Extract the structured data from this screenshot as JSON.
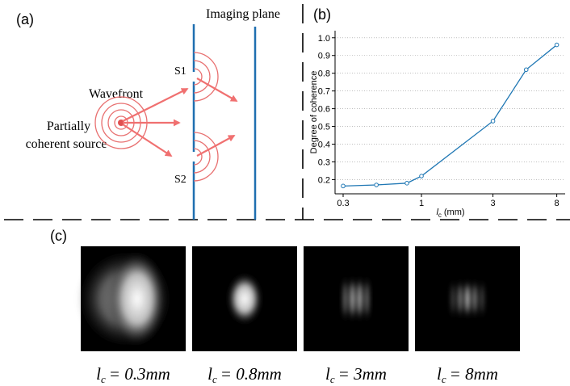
{
  "panel_a": {
    "label": "(a)",
    "imaging_plane": "Imaging plane",
    "wavefront": "Wavefront",
    "source": [
      "Partially",
      "coherent source"
    ],
    "slits": [
      "S1",
      "S2"
    ]
  },
  "panel_b": {
    "label": "(b)"
  },
  "chart_data": {
    "type": "line",
    "y_label": "Degree of coherence",
    "x_label": {
      "symbol": "l",
      "subscript": "c",
      "text": "(mm)"
    },
    "x": [
      0.3,
      0.5,
      0.8,
      1,
      3,
      5,
      8
    ],
    "series": [
      {
        "color": "#1f77b4",
        "values": [
          0.164,
          0.17,
          0.18,
          0.22,
          0.53,
          0.82,
          0.96
        ]
      }
    ],
    "xscale": "log",
    "xlim": [
      0.265,
      9.1
    ],
    "xticks": [
      0.3,
      1,
      3,
      8
    ],
    "ylim": [
      0.12,
      1.04
    ],
    "yticks": [
      0.2,
      0.3,
      0.4,
      0.5,
      0.6,
      0.7,
      0.8,
      0.9,
      {
        "value": 1,
        "label": "1.0"
      }
    ],
    "grid": true
  },
  "panel_c": {
    "label": "(c)",
    "images": [
      {
        "symbol": "l",
        "subscript": "c",
        "text": "= 0.3mm"
      },
      {
        "symbol": "l",
        "subscript": "c",
        "text": "= 0.8mm"
      },
      {
        "symbol": "l",
        "subscript": "c",
        "text": "= 3mm"
      },
      {
        "symbol": "l",
        "subscript": "c",
        "text": "= 8mm"
      }
    ]
  }
}
